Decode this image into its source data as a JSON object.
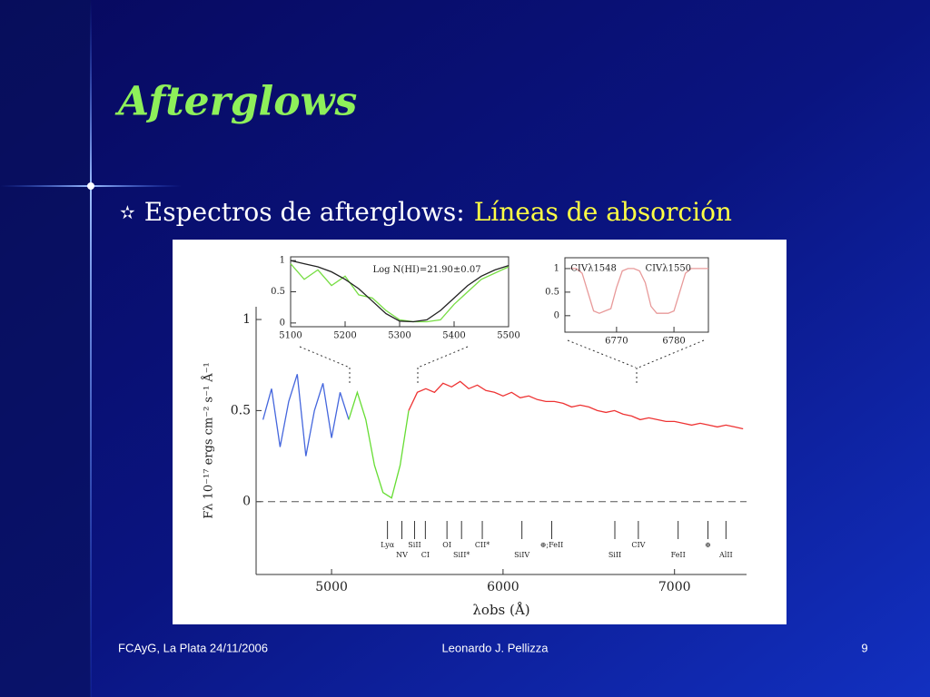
{
  "slide": {
    "title": "Afterglows",
    "bullet": {
      "marker": "✫",
      "text": "Espectros de afterglows:",
      "emphasis": "Líneas de absorción"
    }
  },
  "footer": {
    "left": "FCAyG, La Plata 24/11/2006",
    "center": "Leonardo J. Pellizza",
    "right": "9"
  },
  "chart_data": [
    {
      "type": "line",
      "xlabel": "λobs (Å)",
      "ylabel": "Fλ 10⁻¹⁷ ergs cm⁻² s⁻¹ Å⁻¹",
      "xlim": [
        4560,
        7420
      ],
      "ylim": [
        -0.4,
        1.07
      ],
      "xticks": [
        5000,
        6000,
        7000
      ],
      "yticks": [
        0,
        0.5,
        1
      ],
      "reference_line": 0,
      "x": [
        4600,
        4650,
        4700,
        4750,
        4800,
        4850,
        4900,
        4950,
        5000,
        5050,
        5100,
        5150,
        5200,
        5250,
        5300,
        5350,
        5400,
        5450,
        5500,
        5550,
        5600,
        5650,
        5700,
        5750,
        5800,
        5850,
        5900,
        5950,
        6000,
        6050,
        6100,
        6150,
        6200,
        6250,
        6300,
        6350,
        6400,
        6450,
        6500,
        6550,
        6600,
        6650,
        6700,
        6750,
        6800,
        6850,
        6900,
        6950,
        7000,
        7050,
        7100,
        7150,
        7200,
        7250,
        7300,
        7350,
        7400
      ],
      "series": [
        {
          "color": "#4466dd",
          "values": [
            0.45,
            0.62,
            0.3,
            0.55,
            0.7,
            0.25,
            0.5,
            0.65,
            0.35,
            0.6,
            0.45,
            null,
            null,
            null,
            null,
            null,
            null,
            null,
            null,
            null,
            null,
            null,
            null,
            null,
            null,
            null,
            null,
            null,
            null,
            null,
            null,
            null,
            null,
            null,
            null,
            null,
            null,
            null,
            null,
            null,
            null,
            null,
            null,
            null,
            null,
            null,
            null,
            null,
            null,
            null,
            null,
            null,
            null,
            null,
            null,
            null,
            null
          ]
        },
        {
          "color": "#66dd33",
          "values": [
            null,
            null,
            null,
            null,
            null,
            null,
            null,
            null,
            null,
            null,
            0.45,
            0.6,
            0.45,
            0.2,
            0.05,
            0.02,
            0.2,
            0.5,
            null,
            null,
            null,
            null,
            null,
            null,
            null,
            null,
            null,
            null,
            null,
            null,
            null,
            null,
            null,
            null,
            null,
            null,
            null,
            null,
            null,
            null,
            null,
            null,
            null,
            null,
            null,
            null,
            null,
            null,
            null,
            null,
            null,
            null,
            null,
            null,
            null,
            null,
            null
          ]
        },
        {
          "color": "#ee3333",
          "values": [
            null,
            null,
            null,
            null,
            null,
            null,
            null,
            null,
            null,
            null,
            null,
            null,
            null,
            null,
            null,
            null,
            null,
            0.5,
            0.6,
            0.62,
            0.6,
            0.65,
            0.63,
            0.66,
            0.62,
            0.64,
            0.61,
            0.6,
            0.58,
            0.6,
            0.57,
            0.58,
            0.56,
            0.55,
            0.55,
            0.54,
            0.52,
            0.53,
            0.52,
            0.5,
            0.49,
            0.5,
            0.48,
            0.47,
            0.45,
            0.46,
            0.45,
            0.44,
            0.44,
            0.43,
            0.42,
            0.43,
            0.42,
            0.41,
            0.42,
            0.41,
            0.4
          ]
        }
      ],
      "line_ids": [
        {
          "label": "Lyα",
          "x": 5326
        },
        {
          "label": "NV",
          "x": 5410
        },
        {
          "label": "SiII",
          "x": 5484
        },
        {
          "label": "CI",
          "x": 5547
        },
        {
          "label": "OI",
          "x": 5673
        },
        {
          "label": "SiII*",
          "x": 5758
        },
        {
          "label": "CII*",
          "x": 5879
        },
        {
          "label": "SiIV",
          "x": 6110
        },
        {
          "label": "⊕;FeII",
          "x": 6284
        },
        {
          "label": "SiII",
          "x": 6652
        },
        {
          "label": "CIV",
          "x": 6789
        },
        {
          "label": "FeII",
          "x": 7021
        },
        {
          "label": "⊕",
          "x": 7195
        },
        {
          "label": "AlII",
          "x": 7300
        }
      ]
    },
    {
      "type": "line",
      "xlim": [
        5100,
        5500
      ],
      "ylim": [
        -0.06,
        1.06
      ],
      "xticks": [
        5100,
        5200,
        5300,
        5400,
        5500
      ],
      "yticks": [
        0,
        0.5,
        1
      ],
      "x": [
        5100,
        5125,
        5150,
        5175,
        5200,
        5225,
        5250,
        5275,
        5300,
        5325,
        5350,
        5375,
        5400,
        5425,
        5450,
        5475,
        5500
      ],
      "series": [
        {
          "color": "#77dd44",
          "values": [
            0.95,
            0.7,
            0.85,
            0.6,
            0.75,
            0.45,
            0.4,
            0.2,
            0.05,
            0.02,
            0.02,
            0.05,
            0.3,
            0.5,
            0.7,
            0.8,
            0.9
          ]
        },
        {
          "color": "#222222",
          "values": [
            1,
            0.95,
            0.9,
            0.82,
            0.7,
            0.55,
            0.35,
            0.15,
            0.03,
            0.02,
            0.05,
            0.2,
            0.4,
            0.6,
            0.75,
            0.85,
            0.92
          ]
        }
      ],
      "annotations": [
        {
          "text": "Log N(HI)=21.90±0.07",
          "x": 5350,
          "y": 0.85
        }
      ]
    },
    {
      "type": "line",
      "xlim": [
        6761,
        6786
      ],
      "ylim": [
        -0.35,
        1.23
      ],
      "xticks": [
        6770,
        6780
      ],
      "yticks": [
        0,
        0.5,
        1
      ],
      "x": [
        6762,
        6763,
        6764,
        6765,
        6766,
        6767,
        6768,
        6769,
        6770,
        6771,
        6772,
        6773,
        6774,
        6775,
        6776,
        6777,
        6778,
        6779,
        6780,
        6781,
        6782,
        6783,
        6784,
        6785,
        6786
      ],
      "series": [
        {
          "color": "#e89a9a",
          "values": [
            1,
            1,
            0.9,
            0.5,
            0.1,
            0.05,
            0.1,
            0.15,
            0.6,
            0.95,
            1,
            1,
            0.95,
            0.7,
            0.2,
            0.05,
            0.05,
            0.05,
            0.1,
            0.5,
            0.9,
            1,
            1,
            1,
            1
          ]
        }
      ],
      "annotations": [
        {
          "text": "CIVλ1548",
          "x": 6766,
          "y": 1.0
        },
        {
          "text": "CIVλ1550",
          "x": 6779,
          "y": 1.0
        }
      ]
    }
  ]
}
